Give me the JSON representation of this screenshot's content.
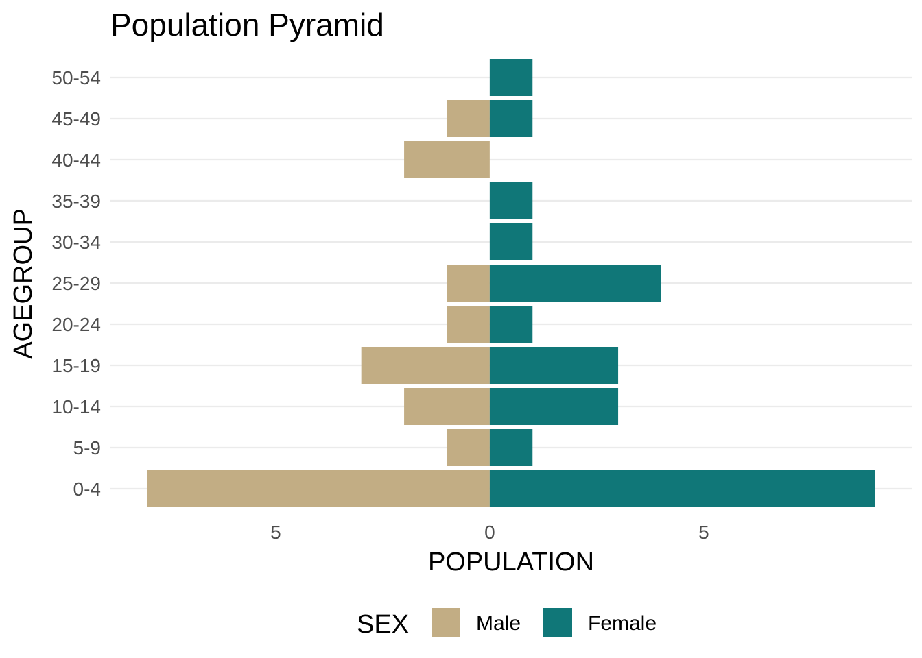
{
  "chart_data": {
    "type": "bar",
    "orientation": "horizontal",
    "title": "Population Pyramid",
    "xlabel": "POPULATION",
    "ylabel": "AGEGROUP",
    "categories": [
      "0-4",
      "5-9",
      "10-14",
      "15-19",
      "20-24",
      "25-29",
      "30-34",
      "35-39",
      "40-44",
      "45-49",
      "50-54"
    ],
    "series": [
      {
        "name": "Male",
        "color": "#C2AD84",
        "values": [
          8,
          1,
          2,
          3,
          1,
          1,
          0,
          0,
          2,
          1,
          0
        ]
      },
      {
        "name": "Female",
        "color": "#107778",
        "values": [
          9,
          1,
          3,
          3,
          1,
          4,
          1,
          1,
          0,
          1,
          1
        ]
      }
    ],
    "x_ticks": [
      {
        "value": -5,
        "label": "5"
      },
      {
        "value": 0,
        "label": "0"
      },
      {
        "value": 5,
        "label": "5"
      }
    ],
    "xlim": [
      -8.86,
      9.86
    ],
    "grid": true,
    "legend": {
      "title": "SEX",
      "position": "bottom"
    }
  }
}
